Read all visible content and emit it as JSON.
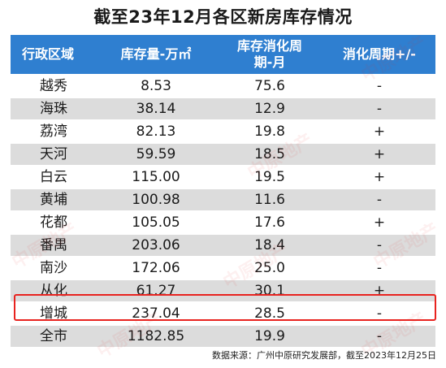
{
  "title": "截至23年12月各区新房库存情况",
  "chart_data": {
    "type": "table",
    "columns": [
      "行政区域",
      "库存量-万㎡",
      "库存消化周期-月",
      "消化周期+/-"
    ],
    "rows": [
      {
        "district": "越秀",
        "inventory": "8.53",
        "cycle": "75.6",
        "change": "-"
      },
      {
        "district": "海珠",
        "inventory": "38.14",
        "cycle": "12.9",
        "change": "-"
      },
      {
        "district": "荔湾",
        "inventory": "82.13",
        "cycle": "19.8",
        "change": "+"
      },
      {
        "district": "天河",
        "inventory": "59.59",
        "cycle": "18.5",
        "change": "+"
      },
      {
        "district": "白云",
        "inventory": "115.00",
        "cycle": "19.5",
        "change": "+"
      },
      {
        "district": "黄埔",
        "inventory": "100.98",
        "cycle": "11.6",
        "change": "-"
      },
      {
        "district": "花都",
        "inventory": "105.05",
        "cycle": "17.6",
        "change": "+"
      },
      {
        "district": "番禺",
        "inventory": "203.06",
        "cycle": "18.4",
        "change": "-"
      },
      {
        "district": "南沙",
        "inventory": "172.06",
        "cycle": "25.0",
        "change": "-"
      },
      {
        "district": "从化",
        "inventory": "61.27",
        "cycle": "30.1",
        "change": "+"
      },
      {
        "district": "增城",
        "inventory": "237.04",
        "cycle": "28.5",
        "change": "-"
      },
      {
        "district": "全市",
        "inventory": "1182.85",
        "cycle": "19.9",
        "change": "-"
      }
    ],
    "highlighted_row": "增城"
  },
  "watermark_text": "中原地产",
  "source": "数据来源：广州中原研究发展部，截至2023年12月25日",
  "colors": {
    "header": "#2f7fd0",
    "stripe": "#dcdcdc",
    "highlight": "#e8231f"
  }
}
